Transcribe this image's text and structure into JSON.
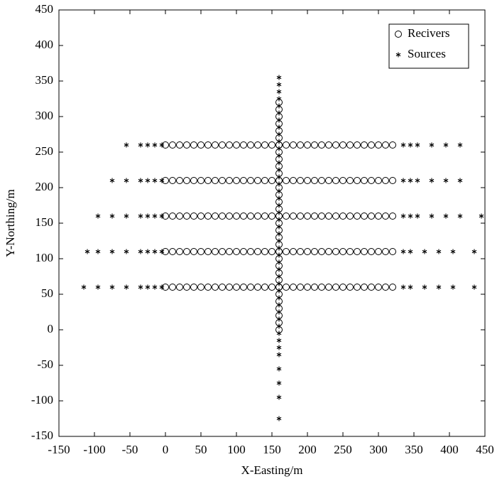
{
  "chart_data": {
    "type": "scatter",
    "xlabel": "X-Easting/m",
    "ylabel": "Y-Northing/m",
    "xlim": [
      -150,
      450
    ],
    "xticks": [
      -150,
      -100,
      -50,
      0,
      50,
      100,
      150,
      200,
      250,
      300,
      350,
      400,
      450
    ],
    "ylim": [
      -150,
      450
    ],
    "yticks": [
      -150,
      -100,
      -50,
      0,
      50,
      100,
      150,
      200,
      250,
      300,
      350,
      400,
      450
    ],
    "legend": "upper right",
    "series": [
      {
        "name": "Recivers",
        "marker": "circle",
        "color": "#000000",
        "x": [
          0,
          10,
          20,
          30,
          40,
          50,
          60,
          70,
          80,
          90,
          100,
          110,
          120,
          130,
          140,
          150,
          160,
          170,
          180,
          190,
          200,
          210,
          220,
          230,
          240,
          250,
          260,
          270,
          280,
          290,
          300,
          310,
          320,
          0,
          10,
          20,
          30,
          40,
          50,
          60,
          70,
          80,
          90,
          100,
          110,
          120,
          130,
          140,
          150,
          160,
          170,
          180,
          190,
          200,
          210,
          220,
          230,
          240,
          250,
          260,
          270,
          280,
          290,
          300,
          310,
          320,
          0,
          10,
          20,
          30,
          40,
          50,
          60,
          70,
          80,
          90,
          100,
          110,
          120,
          130,
          140,
          150,
          160,
          170,
          180,
          190,
          200,
          210,
          220,
          230,
          240,
          250,
          260,
          270,
          280,
          290,
          300,
          310,
          320,
          0,
          10,
          20,
          30,
          40,
          50,
          60,
          70,
          80,
          90,
          100,
          110,
          120,
          130,
          140,
          150,
          160,
          170,
          180,
          190,
          200,
          210,
          220,
          230,
          240,
          250,
          260,
          270,
          280,
          290,
          300,
          310,
          320,
          0,
          10,
          20,
          30,
          40,
          50,
          60,
          70,
          80,
          90,
          100,
          110,
          120,
          130,
          140,
          150,
          160,
          170,
          180,
          190,
          200,
          210,
          220,
          230,
          240,
          250,
          260,
          270,
          280,
          290,
          300,
          310,
          320,
          160,
          160,
          160,
          160,
          160,
          160,
          160,
          160,
          160,
          160,
          160,
          160,
          160,
          160,
          160,
          160,
          160,
          160,
          160,
          160,
          160,
          160,
          160,
          160,
          160,
          160,
          160,
          160,
          160,
          160,
          160,
          160,
          160
        ],
        "values": [
          60,
          60,
          60,
          60,
          60,
          60,
          60,
          60,
          60,
          60,
          60,
          60,
          60,
          60,
          60,
          60,
          60,
          60,
          60,
          60,
          60,
          60,
          60,
          60,
          60,
          60,
          60,
          60,
          60,
          60,
          60,
          60,
          60,
          110,
          110,
          110,
          110,
          110,
          110,
          110,
          110,
          110,
          110,
          110,
          110,
          110,
          110,
          110,
          110,
          110,
          110,
          110,
          110,
          110,
          110,
          110,
          110,
          110,
          110,
          110,
          110,
          110,
          110,
          110,
          110,
          110,
          160,
          160,
          160,
          160,
          160,
          160,
          160,
          160,
          160,
          160,
          160,
          160,
          160,
          160,
          160,
          160,
          160,
          160,
          160,
          160,
          160,
          160,
          160,
          160,
          160,
          160,
          160,
          160,
          160,
          160,
          160,
          160,
          160,
          210,
          210,
          210,
          210,
          210,
          210,
          210,
          210,
          210,
          210,
          210,
          210,
          210,
          210,
          210,
          210,
          210,
          210,
          210,
          210,
          210,
          210,
          210,
          210,
          210,
          210,
          210,
          210,
          210,
          210,
          210,
          210,
          210,
          260,
          260,
          260,
          260,
          260,
          260,
          260,
          260,
          260,
          260,
          260,
          260,
          260,
          260,
          260,
          260,
          260,
          260,
          260,
          260,
          260,
          260,
          260,
          260,
          260,
          260,
          260,
          260,
          260,
          260,
          260,
          260,
          260,
          0,
          10,
          20,
          30,
          40,
          50,
          60,
          70,
          80,
          90,
          100,
          110,
          120,
          130,
          140,
          150,
          160,
          170,
          180,
          190,
          200,
          210,
          220,
          230,
          240,
          250,
          260,
          270,
          280,
          290,
          300,
          310,
          320
        ]
      },
      {
        "name": "Sources",
        "marker": "star",
        "color": "#000000",
        "x": [
          -115,
          -95,
          -75,
          -55,
          -35,
          -25,
          -15,
          -5,
          335,
          345,
          365,
          385,
          405,
          435,
          -110,
          -95,
          -75,
          -55,
          -35,
          -25,
          -15,
          -5,
          335,
          345,
          365,
          385,
          405,
          435,
          -95,
          -75,
          -55,
          -35,
          -25,
          -15,
          -5,
          335,
          345,
          355,
          375,
          395,
          415,
          445,
          -75,
          -55,
          -35,
          -25,
          -15,
          -5,
          335,
          345,
          355,
          375,
          395,
          415,
          -55,
          -35,
          -25,
          -15,
          -5,
          335,
          345,
          355,
          375,
          395,
          415,
          160,
          160,
          160,
          160,
          160,
          160,
          160,
          160,
          160,
          160,
          160,
          160,
          160,
          160,
          160,
          160,
          160,
          160,
          160,
          160,
          160,
          160,
          160,
          160,
          160,
          160,
          160,
          160,
          160,
          160,
          160,
          160,
          160,
          160,
          160,
          160,
          160,
          160,
          160,
          160,
          160,
          160,
          160,
          160
        ],
        "values": [
          60,
          60,
          60,
          60,
          60,
          60,
          60,
          60,
          60,
          60,
          60,
          60,
          60,
          60,
          110,
          110,
          110,
          110,
          110,
          110,
          110,
          110,
          110,
          110,
          110,
          110,
          110,
          110,
          160,
          160,
          160,
          160,
          160,
          160,
          160,
          160,
          160,
          160,
          160,
          160,
          160,
          160,
          210,
          210,
          210,
          210,
          210,
          210,
          210,
          210,
          210,
          210,
          210,
          210,
          260,
          260,
          260,
          260,
          260,
          260,
          260,
          260,
          260,
          260,
          260,
          355,
          345,
          335,
          325,
          315,
          305,
          295,
          285,
          275,
          265,
          255,
          245,
          235,
          225,
          215,
          205,
          195,
          185,
          175,
          165,
          155,
          145,
          135,
          125,
          115,
          105,
          95,
          85,
          75,
          65,
          55,
          45,
          35,
          25,
          15,
          5,
          -5,
          -15,
          -25,
          -35,
          -55,
          -75,
          -95,
          -125
        ]
      }
    ]
  }
}
